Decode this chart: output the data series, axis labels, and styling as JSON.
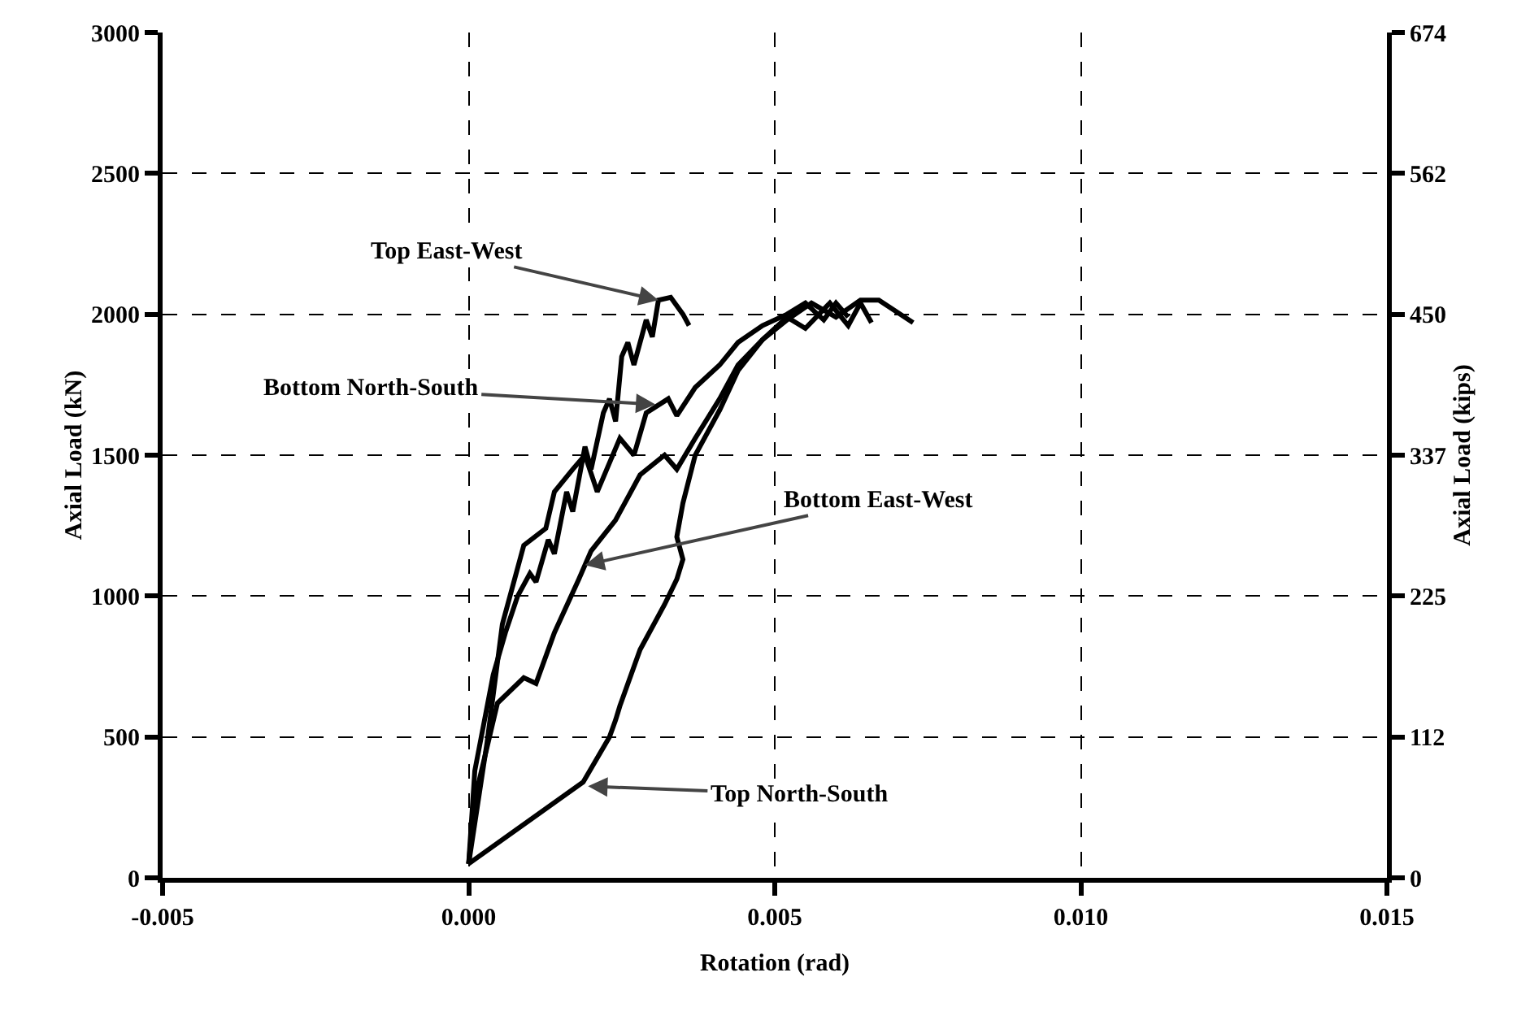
{
  "chart_data": {
    "type": "line",
    "xlabel": "Rotation (rad)",
    "ylabel": "Axial Load (kN)",
    "y2label": "Axial Load (kips)",
    "xlim": [
      -0.005,
      0.015
    ],
    "xticks": [
      {
        "value": -0.005,
        "label": "-0.005"
      },
      {
        "value": 0,
        "label": "0.000"
      },
      {
        "value": 0.005,
        "label": "0.005"
      },
      {
        "value": 0.01,
        "label": "0.010"
      },
      {
        "value": 0.015,
        "label": "0.015"
      }
    ],
    "ylim": [
      0,
      3000
    ],
    "yticks": [
      0,
      500,
      1000,
      1500,
      2000,
      2500,
      3000
    ],
    "y2lim": [
      0,
      674.4
    ],
    "y2ticks": [
      {
        "value": 0,
        "label": "0"
      },
      {
        "value": 112.4,
        "label": "112"
      },
      {
        "value": 224.8,
        "label": "225"
      },
      {
        "value": 337.2,
        "label": "337"
      },
      {
        "value": 449.6,
        "label": "450"
      },
      {
        "value": 562,
        "label": "562"
      },
      {
        "value": 674.4,
        "label": "674"
      }
    ],
    "grid": true,
    "marker": "none",
    "line_style": "solid",
    "series": [
      {
        "color": "#000000",
        "x": [
          0,
          0.0001,
          0.0004,
          0.0006,
          0.0008,
          0.001,
          0.0011,
          0.0013,
          0.0014,
          0.0016,
          0.0017,
          0.0019,
          0.002,
          0.0022,
          0.0023,
          0.0024,
          0.0025,
          0.0026,
          0.0027,
          0.0029,
          0.003,
          0.0031,
          0.0033,
          0.0035,
          0.0036
        ],
        "values": [
          50,
          380,
          720,
          870,
          1000,
          1080,
          1050,
          1200,
          1150,
          1370,
          1300,
          1530,
          1450,
          1650,
          1700,
          1620,
          1850,
          1900,
          1820,
          1980,
          1920,
          2050,
          2060,
          2000,
          1960
        ]
      },
      {
        "color": "#000000",
        "x": [
          0,
          0.0003,
          0.00055,
          0.0009,
          0.00126,
          0.0014,
          0.0017,
          0.0019,
          0.0021,
          0.00247,
          0.0027,
          0.0029,
          0.00326,
          0.0034,
          0.0037,
          0.0041,
          0.0044,
          0.0048,
          0.0052,
          0.0055,
          0.0058,
          0.006,
          0.0062
        ],
        "values": [
          50,
          480,
          900,
          1180,
          1240,
          1370,
          1450,
          1500,
          1370,
          1560,
          1500,
          1650,
          1700,
          1640,
          1740,
          1820,
          1900,
          1960,
          2000,
          2040,
          1980,
          2040,
          1990
        ]
      },
      {
        "color": "#000000",
        "x": [
          0,
          0.0001,
          0.00047,
          0.0009,
          0.0011,
          0.0014,
          0.0018,
          0.002,
          0.0024,
          0.0028,
          0.0032,
          0.0034,
          0.0037,
          0.0041,
          0.0044,
          0.0048,
          0.0052,
          0.0055,
          0.0059,
          0.0062,
          0.0064,
          0.00658
        ],
        "values": [
          50,
          280,
          620,
          710,
          690,
          870,
          1060,
          1160,
          1270,
          1430,
          1500,
          1450,
          1560,
          1700,
          1820,
          1910,
          1990,
          1950,
          2040,
          1960,
          2040,
          1970
        ]
      },
      {
        "color": "#000000",
        "x": [
          0,
          0.00187,
          0.0023,
          0.0024,
          0.00247,
          0.0028,
          0.0032,
          0.0034,
          0.0035,
          0.0034,
          0.0035,
          0.0037,
          0.0041,
          0.0044,
          0.0048,
          0.0052,
          0.0056,
          0.006,
          0.0064,
          0.0067,
          0.00726
        ],
        "values": [
          50,
          340,
          500,
          560,
          610,
          810,
          970,
          1060,
          1130,
          1210,
          1330,
          1500,
          1660,
          1800,
          1910,
          1980,
          2040,
          1990,
          2050,
          2050,
          1970
        ]
      }
    ],
    "annotations": [
      {
        "text": "Top East-West",
        "x": 0.0031,
        "y": 2050
      },
      {
        "text": "Bottom North-South",
        "x": 0.00305,
        "y": 1680
      },
      {
        "text": "Bottom East-West",
        "x": 0.0019,
        "y": 1110
      },
      {
        "text": "Top North-South",
        "x": 0.00195,
        "y": 325
      }
    ]
  }
}
